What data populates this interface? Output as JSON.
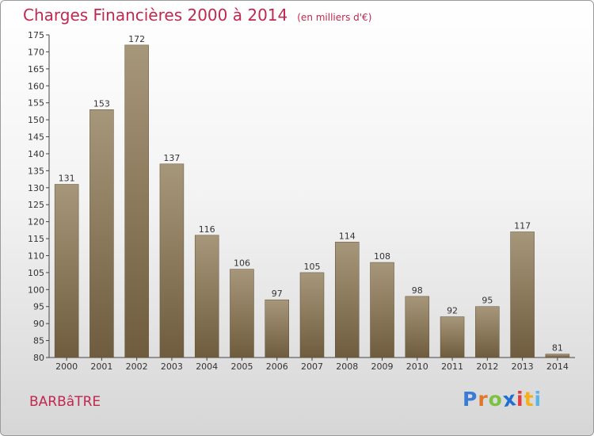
{
  "header": {
    "title": "Charges Financières 2000 à 2014",
    "subtitle": "(en milliers d'€)"
  },
  "footer": {
    "commune": "BARBâTRE",
    "logo": {
      "text": "Proxiti",
      "letters": [
        "P",
        "r",
        "o",
        "x",
        "i",
        "t",
        "i"
      ],
      "colors": [
        "#3a7bd5",
        "#e2762a",
        "#7cc242",
        "#1e6fd0",
        "#e23b3b",
        "#f2b01e",
        "#5bb5e6"
      ]
    }
  },
  "colors": {
    "accent": "#c0284f",
    "bar_top": "#a7977a",
    "bar_bottom": "#6f5c3e"
  },
  "chart_data": {
    "type": "bar",
    "title": "Charges Financières 2000 à 2014",
    "subtitle": "(en milliers d'€)",
    "categories": [
      "2000",
      "2001",
      "2002",
      "2003",
      "2004",
      "2005",
      "2006",
      "2007",
      "2008",
      "2009",
      "2010",
      "2011",
      "2012",
      "2013",
      "2014"
    ],
    "values": [
      131,
      153,
      172,
      137,
      116,
      106,
      97,
      105,
      114,
      108,
      98,
      92,
      95,
      117,
      81
    ],
    "ylim": [
      80,
      175
    ],
    "yticks": [
      80,
      85,
      90,
      95,
      100,
      105,
      110,
      115,
      120,
      125,
      130,
      135,
      140,
      145,
      150,
      155,
      160,
      165,
      170,
      175
    ],
    "grid": false,
    "data_labels": true
  }
}
